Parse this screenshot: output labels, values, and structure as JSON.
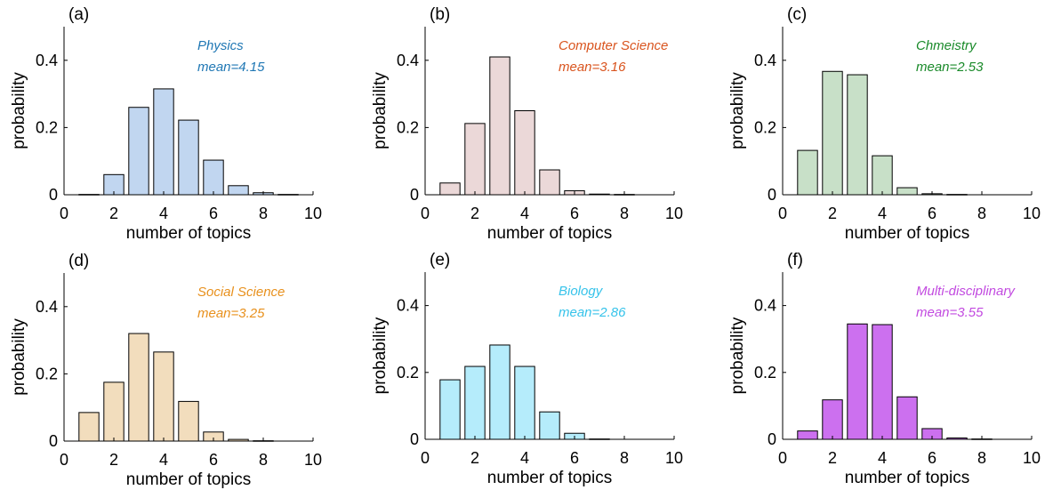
{
  "figure": {
    "panels": [
      "(a)",
      "(b)",
      "(c)",
      "(d)",
      "(e)",
      "(f)"
    ]
  },
  "chart_data": [
    {
      "type": "bar",
      "panel": "(a)",
      "annotation": {
        "name": "Physics",
        "mean": "mean=4.15",
        "color": "#1f77b4"
      },
      "bar_color": "#c1d6f0",
      "xlabel": "number of topics",
      "ylabel": "probability",
      "xlim": [
        0,
        10
      ],
      "ylim": [
        0,
        0.5
      ],
      "xticks": [
        "0",
        "2",
        "4",
        "6",
        "8",
        "10"
      ],
      "yticks": [
        "0",
        "0.2",
        "0.4"
      ],
      "x": [
        1,
        2,
        3,
        4,
        5,
        6,
        7,
        8,
        9
      ],
      "values": [
        0.001,
        0.06,
        0.26,
        0.315,
        0.222,
        0.103,
        0.027,
        0.006,
        0.001
      ]
    },
    {
      "type": "bar",
      "panel": "(b)",
      "annotation": {
        "name": "Computer Science",
        "mean": "mean=3.16",
        "color": "#d9541e"
      },
      "bar_color": "#ebd8d8",
      "xlabel": "number of topics",
      "ylabel": "probability",
      "xlim": [
        0,
        10
      ],
      "ylim": [
        0,
        0.5
      ],
      "xticks": [
        "0",
        "2",
        "4",
        "6",
        "8",
        "10"
      ],
      "yticks": [
        "0",
        "0.2",
        "0.4"
      ],
      "x": [
        1,
        2,
        3,
        4,
        5,
        6,
        7,
        8
      ],
      "values": [
        0.035,
        0.212,
        0.41,
        0.25,
        0.074,
        0.012,
        0.002,
        0.001
      ]
    },
    {
      "type": "bar",
      "panel": "(c)",
      "annotation": {
        "name": "Chmeistry",
        "mean": "mean=2.53",
        "color": "#1a8a2a"
      },
      "bar_color": "#c8e0c8",
      "xlabel": "number of topics",
      "ylabel": "probability",
      "xlim": [
        0,
        10
      ],
      "ylim": [
        0,
        0.5
      ],
      "xticks": [
        "0",
        "2",
        "4",
        "6",
        "8",
        "10"
      ],
      "yticks": [
        "0",
        "0.2",
        "0.4"
      ],
      "x": [
        1,
        2,
        3,
        4,
        5,
        6,
        7
      ],
      "values": [
        0.132,
        0.367,
        0.357,
        0.116,
        0.021,
        0.003,
        0.001
      ]
    },
    {
      "type": "bar",
      "panel": "(d)",
      "annotation": {
        "name": "Social Science",
        "mean": "mean=3.25",
        "color": "#e8901c"
      },
      "bar_color": "#f2ddbd",
      "xlabel": "number of topics",
      "ylabel": "probability",
      "xlim": [
        0,
        10
      ],
      "ylim": [
        0,
        0.5
      ],
      "xticks": [
        "0",
        "2",
        "4",
        "6",
        "8",
        "10"
      ],
      "yticks": [
        "0",
        "0.2",
        "0.4"
      ],
      "x": [
        1,
        2,
        3,
        4,
        5,
        6,
        7,
        8
      ],
      "values": [
        0.085,
        0.175,
        0.32,
        0.265,
        0.118,
        0.027,
        0.005,
        0.001
      ]
    },
    {
      "type": "bar",
      "panel": "(e)",
      "annotation": {
        "name": "Biology",
        "mean": "mean=2.86",
        "color": "#36c3ea"
      },
      "bar_color": "#b5ecfb",
      "xlabel": "number of topics",
      "ylabel": "probability",
      "xlim": [
        0,
        10
      ],
      "ylim": [
        0,
        0.5
      ],
      "xticks": [
        "0",
        "2",
        "4",
        "6",
        "8",
        "10"
      ],
      "yticks": [
        "0",
        "0.2",
        "0.4"
      ],
      "x": [
        1,
        2,
        3,
        4,
        5,
        6,
        7
      ],
      "values": [
        0.178,
        0.218,
        0.282,
        0.218,
        0.082,
        0.018,
        0.001
      ]
    },
    {
      "type": "bar",
      "panel": "(f)",
      "annotation": {
        "name": "Multi-disciplinary",
        "mean": "mean=3.55",
        "color": "#c24ae0"
      },
      "bar_color": "#cc70ef",
      "xlabel": "number of topics",
      "ylabel": "probability",
      "xlim": [
        0,
        10
      ],
      "ylim": [
        0,
        0.5
      ],
      "xticks": [
        "0",
        "2",
        "4",
        "6",
        "8",
        "10"
      ],
      "yticks": [
        "0",
        "0.2",
        "0.4"
      ],
      "x": [
        1,
        2,
        3,
        4,
        5,
        6,
        7,
        8
      ],
      "values": [
        0.025,
        0.118,
        0.345,
        0.343,
        0.127,
        0.032,
        0.004,
        0.001
      ]
    }
  ]
}
